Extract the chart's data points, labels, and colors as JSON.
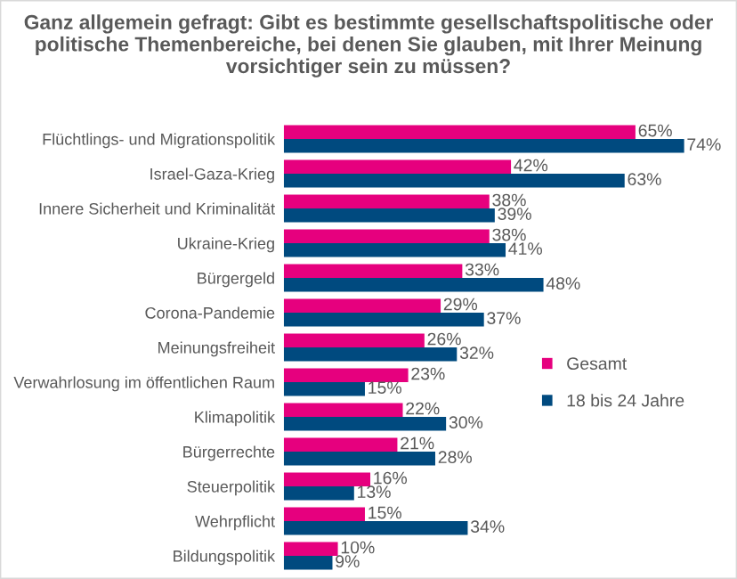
{
  "chart_data": {
    "type": "bar",
    "orientation": "horizontal",
    "title": "Ganz allgemein gefragt: Gibt es bestimmte gesellschaftspolitische oder politische Themenbereiche, bei denen Sie glauben, mit Ihrer Meinung vorsichtiger sein zu müssen?",
    "categories": [
      "Flüchtlings- und Migrationspolitik",
      "Israel-Gaza-Krieg",
      "Innere Sicherheit und Kriminalität",
      "Ukraine-Krieg",
      "Bürgergeld",
      "Corona-Pandemie",
      "Meinungsfreiheit",
      "Verwahrlosung im öffentlichen Raum",
      "Klimapolitik",
      "Bürgerrechte",
      "Steuerpolitik",
      "Wehrpflicht",
      "Bildungspolitik"
    ],
    "series": [
      {
        "name": "Gesamt",
        "color": "#e6007e",
        "values": [
          65,
          42,
          38,
          38,
          33,
          29,
          26,
          23,
          22,
          21,
          16,
          15,
          10
        ],
        "value_labels": [
          "65%",
          "42%",
          "38%",
          "38%",
          "33%",
          "29%",
          "26%",
          "23%",
          "22%",
          "21%",
          "16%",
          "15%",
          "10%"
        ]
      },
      {
        "name": "18 bis 24 Jahre",
        "color": "#004a7f",
        "values": [
          74,
          63,
          39,
          41,
          48,
          37,
          32,
          15,
          30,
          28,
          13,
          34,
          9
        ],
        "value_labels": [
          "74%",
          "63%",
          "39%",
          "41%",
          "48%",
          "37%",
          "32%",
          "15%",
          "30%",
          "28%",
          "13%",
          "34%",
          "9%"
        ]
      }
    ],
    "legend": "right",
    "grid": false
  }
}
